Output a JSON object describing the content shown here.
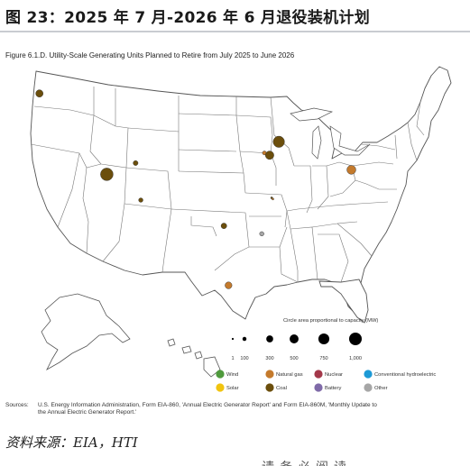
{
  "header": {
    "title": "图 23：2025 年 7 月-2026 年 6 月退役装机计划"
  },
  "figure": {
    "title": "Figure 6.1.D. Utility-Scale Generating Units Planned to Retire from July 2025 to June 2026"
  },
  "size_legend": {
    "caption": "Circle area proportional to capacity (MW)",
    "items": [
      {
        "label": "1",
        "mw": 1
      },
      {
        "label": "100",
        "mw": 100
      },
      {
        "label": "300",
        "mw": 300
      },
      {
        "label": "500",
        "mw": 500
      },
      {
        "label": "750",
        "mw": 750
      },
      {
        "label": "1,000",
        "mw": 1000
      }
    ]
  },
  "fuel_legend": [
    {
      "label": "Wind",
      "color": "#4f9a3d"
    },
    {
      "label": "Natural gas",
      "color": "#c47a2c"
    },
    {
      "label": "Nuclear",
      "color": "#a3384a"
    },
    {
      "label": "Conventional hydroelectric",
      "color": "#1d9ad6"
    },
    {
      "label": "Solar",
      "color": "#f1c40f"
    },
    {
      "label": "Coal",
      "color": "#6b4e0c"
    },
    {
      "label": "Battery",
      "color": "#7f6aa8"
    },
    {
      "label": "Other",
      "color": "#a6a6a6"
    }
  ],
  "plants": [
    {
      "fuel": "Coal",
      "mw": 340,
      "lon": -122.9,
      "lat": 46.7
    },
    {
      "fuel": "Coal",
      "mw": 1000,
      "lon": -112.6,
      "lat": 39.5
    },
    {
      "fuel": "Coal",
      "mw": 150,
      "lon": -108.2,
      "lat": 40.5
    },
    {
      "fuel": "Coal",
      "mw": 120,
      "lon": -107.4,
      "lat": 37.2
    },
    {
      "fuel": "Coal",
      "mw": 200,
      "lon": -94.7,
      "lat": 34.9
    },
    {
      "fuel": "Natural gas",
      "mw": 300,
      "lon": -94.0,
      "lat": 29.6
    },
    {
      "fuel": "Natural gas",
      "mw": 100,
      "lon": -88.5,
      "lat": 41.4
    },
    {
      "fuel": "Coal",
      "mw": 450,
      "lon": -87.7,
      "lat": 41.2
    },
    {
      "fuel": "Coal",
      "mw": 800,
      "lon": -86.3,
      "lat": 42.4
    },
    {
      "fuel": "Coal",
      "mw": 25,
      "lon": -87.4,
      "lat": 37.4
    },
    {
      "fuel": "Natural gas",
      "mw": 12,
      "lon": -87.2,
      "lat": 37.3
    },
    {
      "fuel": "Other",
      "mw": 120,
      "lon": -88.9,
      "lat": 34.2
    },
    {
      "fuel": "Natural gas",
      "mw": 500,
      "lon": -75.2,
      "lat": 39.9
    }
  ],
  "sources": {
    "label": "Sources:",
    "text": "U.S. Energy Information Administration, Form EIA-860, 'Annual Electric Generator Report' and Form EIA-860M, 'Monthly Update to the Annual Electric Generator Report.'"
  },
  "note": "资料来源：EIA，HTI",
  "footer_cut": "请务必阅读"
}
